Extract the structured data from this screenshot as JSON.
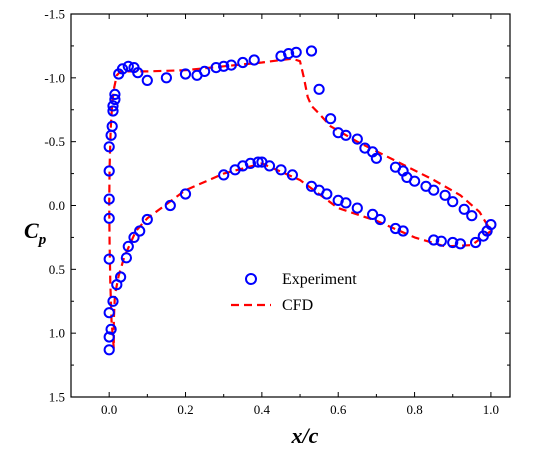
{
  "chart_data": {
    "type": "scatter",
    "xlabel": "x/c",
    "ylabel_main": "C",
    "ylabel_sub": "p",
    "xlim": [
      -0.1,
      1.05
    ],
    "ylim": [
      -1.5,
      1.5
    ],
    "y_inverted": true,
    "x_ticks": [
      "0.0",
      "0.2",
      "0.4",
      "0.6",
      "0.8",
      "1.0"
    ],
    "x_tick_values": [
      0.0,
      0.2,
      0.4,
      0.6,
      0.8,
      1.0
    ],
    "y_ticks": [
      "-1.5",
      "-1.0",
      "-0.5",
      "0.0",
      "0.5",
      "1.0",
      "1.5"
    ],
    "y_tick_values": [
      -1.5,
      -1.0,
      -0.5,
      0.0,
      0.5,
      1.0,
      1.5
    ],
    "legend_position": "center-bottom",
    "series": [
      {
        "name": "Experiment",
        "kind": "markers",
        "color": "#0000ff",
        "points": [
          [
            0.0,
            1.13
          ],
          [
            0.0,
            1.03
          ],
          [
            0.0,
            0.84
          ],
          [
            0.0,
            0.42
          ],
          [
            0.0,
            0.1
          ],
          [
            0.0,
            -0.05
          ],
          [
            0.0,
            -0.27
          ],
          [
            0.0,
            -0.46
          ],
          [
            0.005,
            0.97
          ],
          [
            0.005,
            -0.55
          ],
          [
            0.008,
            -0.62
          ],
          [
            0.01,
            0.75
          ],
          [
            0.01,
            -0.74
          ],
          [
            0.01,
            -0.78
          ],
          [
            0.015,
            -0.83
          ],
          [
            0.015,
            -0.87
          ],
          [
            0.02,
            0.62
          ],
          [
            0.03,
            0.56
          ],
          [
            0.025,
            -1.03
          ],
          [
            0.035,
            -1.07
          ],
          [
            0.045,
            0.41
          ],
          [
            0.05,
            0.32
          ],
          [
            0.05,
            -1.09
          ],
          [
            0.065,
            0.25
          ],
          [
            0.065,
            -1.08
          ],
          [
            0.075,
            -1.04
          ],
          [
            0.08,
            0.2
          ],
          [
            0.1,
            0.11
          ],
          [
            0.1,
            -0.98
          ],
          [
            0.15,
            -1.0
          ],
          [
            0.16,
            0.0
          ],
          [
            0.2,
            -0.09
          ],
          [
            0.2,
            -1.03
          ],
          [
            0.23,
            -1.02
          ],
          [
            0.25,
            -1.05
          ],
          [
            0.28,
            -1.08
          ],
          [
            0.3,
            -0.24
          ],
          [
            0.3,
            -1.09
          ],
          [
            0.32,
            -1.1
          ],
          [
            0.33,
            -0.28
          ],
          [
            0.35,
            -1.12
          ],
          [
            0.35,
            -0.31
          ],
          [
            0.37,
            -0.33
          ],
          [
            0.38,
            -1.14
          ],
          [
            0.39,
            -0.34
          ],
          [
            0.4,
            -0.34
          ],
          [
            0.42,
            -0.31
          ],
          [
            0.45,
            -1.17
          ],
          [
            0.45,
            -0.28
          ],
          [
            0.47,
            -1.19
          ],
          [
            0.48,
            -0.24
          ],
          [
            0.49,
            -1.2
          ],
          [
            0.53,
            -1.21
          ],
          [
            0.53,
            -0.15
          ],
          [
            0.55,
            -0.12
          ],
          [
            0.55,
            -0.91
          ],
          [
            0.57,
            -0.09
          ],
          [
            0.58,
            -0.68
          ],
          [
            0.6,
            -0.04
          ],
          [
            0.6,
            -0.57
          ],
          [
            0.62,
            -0.55
          ],
          [
            0.62,
            -0.02
          ],
          [
            0.65,
            -0.52
          ],
          [
            0.65,
            0.02
          ],
          [
            0.67,
            -0.45
          ],
          [
            0.69,
            0.07
          ],
          [
            0.69,
            -0.42
          ],
          [
            0.7,
            -0.37
          ],
          [
            0.71,
            0.11
          ],
          [
            0.75,
            0.18
          ],
          [
            0.75,
            -0.3
          ],
          [
            0.77,
            0.2
          ],
          [
            0.77,
            -0.27
          ],
          [
            0.78,
            -0.22
          ],
          [
            0.8,
            -0.19
          ],
          [
            0.83,
            -0.15
          ],
          [
            0.85,
            -0.12
          ],
          [
            0.85,
            0.27
          ],
          [
            0.87,
            0.28
          ],
          [
            0.88,
            -0.08
          ],
          [
            0.9,
            0.29
          ],
          [
            0.9,
            -0.03
          ],
          [
            0.93,
            0.03
          ],
          [
            0.92,
            0.3
          ],
          [
            0.95,
            0.08
          ],
          [
            0.96,
            0.29
          ],
          [
            0.98,
            0.24
          ],
          [
            0.99,
            0.2
          ],
          [
            1.0,
            0.15
          ]
        ]
      },
      {
        "name": "CFD",
        "kind": "dashed-line",
        "color": "#ff0000",
        "points": [
          [
            0.012,
            1.12
          ],
          [
            0.006,
            0.9
          ],
          [
            0.003,
            0.6
          ],
          [
            0.001,
            0.3
          ],
          [
            0.0,
            0.0
          ],
          [
            0.001,
            -0.3
          ],
          [
            0.004,
            -0.6
          ],
          [
            0.008,
            -0.8
          ],
          [
            0.013,
            -0.92
          ],
          [
            0.02,
            -1.02
          ],
          [
            0.03,
            -1.05
          ],
          [
            0.05,
            -1.05
          ],
          [
            0.1,
            -1.05
          ],
          [
            0.2,
            -1.06
          ],
          [
            0.3,
            -1.09
          ],
          [
            0.4,
            -1.12
          ],
          [
            0.45,
            -1.14
          ],
          [
            0.48,
            -1.15
          ],
          [
            0.5,
            -1.13
          ],
          [
            0.51,
            -1.0
          ],
          [
            0.52,
            -0.85
          ],
          [
            0.53,
            -0.78
          ],
          [
            0.55,
            -0.72
          ],
          [
            0.58,
            -0.62
          ],
          [
            0.65,
            -0.5
          ],
          [
            0.75,
            -0.35
          ],
          [
            0.85,
            -0.2
          ],
          [
            0.92,
            -0.08
          ],
          [
            0.97,
            0.05
          ],
          [
            1.0,
            0.2
          ],
          [
            0.95,
            0.31
          ],
          [
            0.88,
            0.32
          ],
          [
            0.8,
            0.25
          ],
          [
            0.7,
            0.12
          ],
          [
            0.6,
            0.02
          ],
          [
            0.5,
            -0.2
          ],
          [
            0.4,
            -0.33
          ],
          [
            0.3,
            -0.25
          ],
          [
            0.2,
            -0.12
          ],
          [
            0.1,
            0.1
          ],
          [
            0.07,
            0.2
          ],
          [
            0.04,
            0.4
          ],
          [
            0.025,
            0.55
          ],
          [
            0.015,
            0.7
          ],
          [
            0.012,
            0.9
          ],
          [
            0.012,
            1.12
          ]
        ]
      }
    ]
  }
}
